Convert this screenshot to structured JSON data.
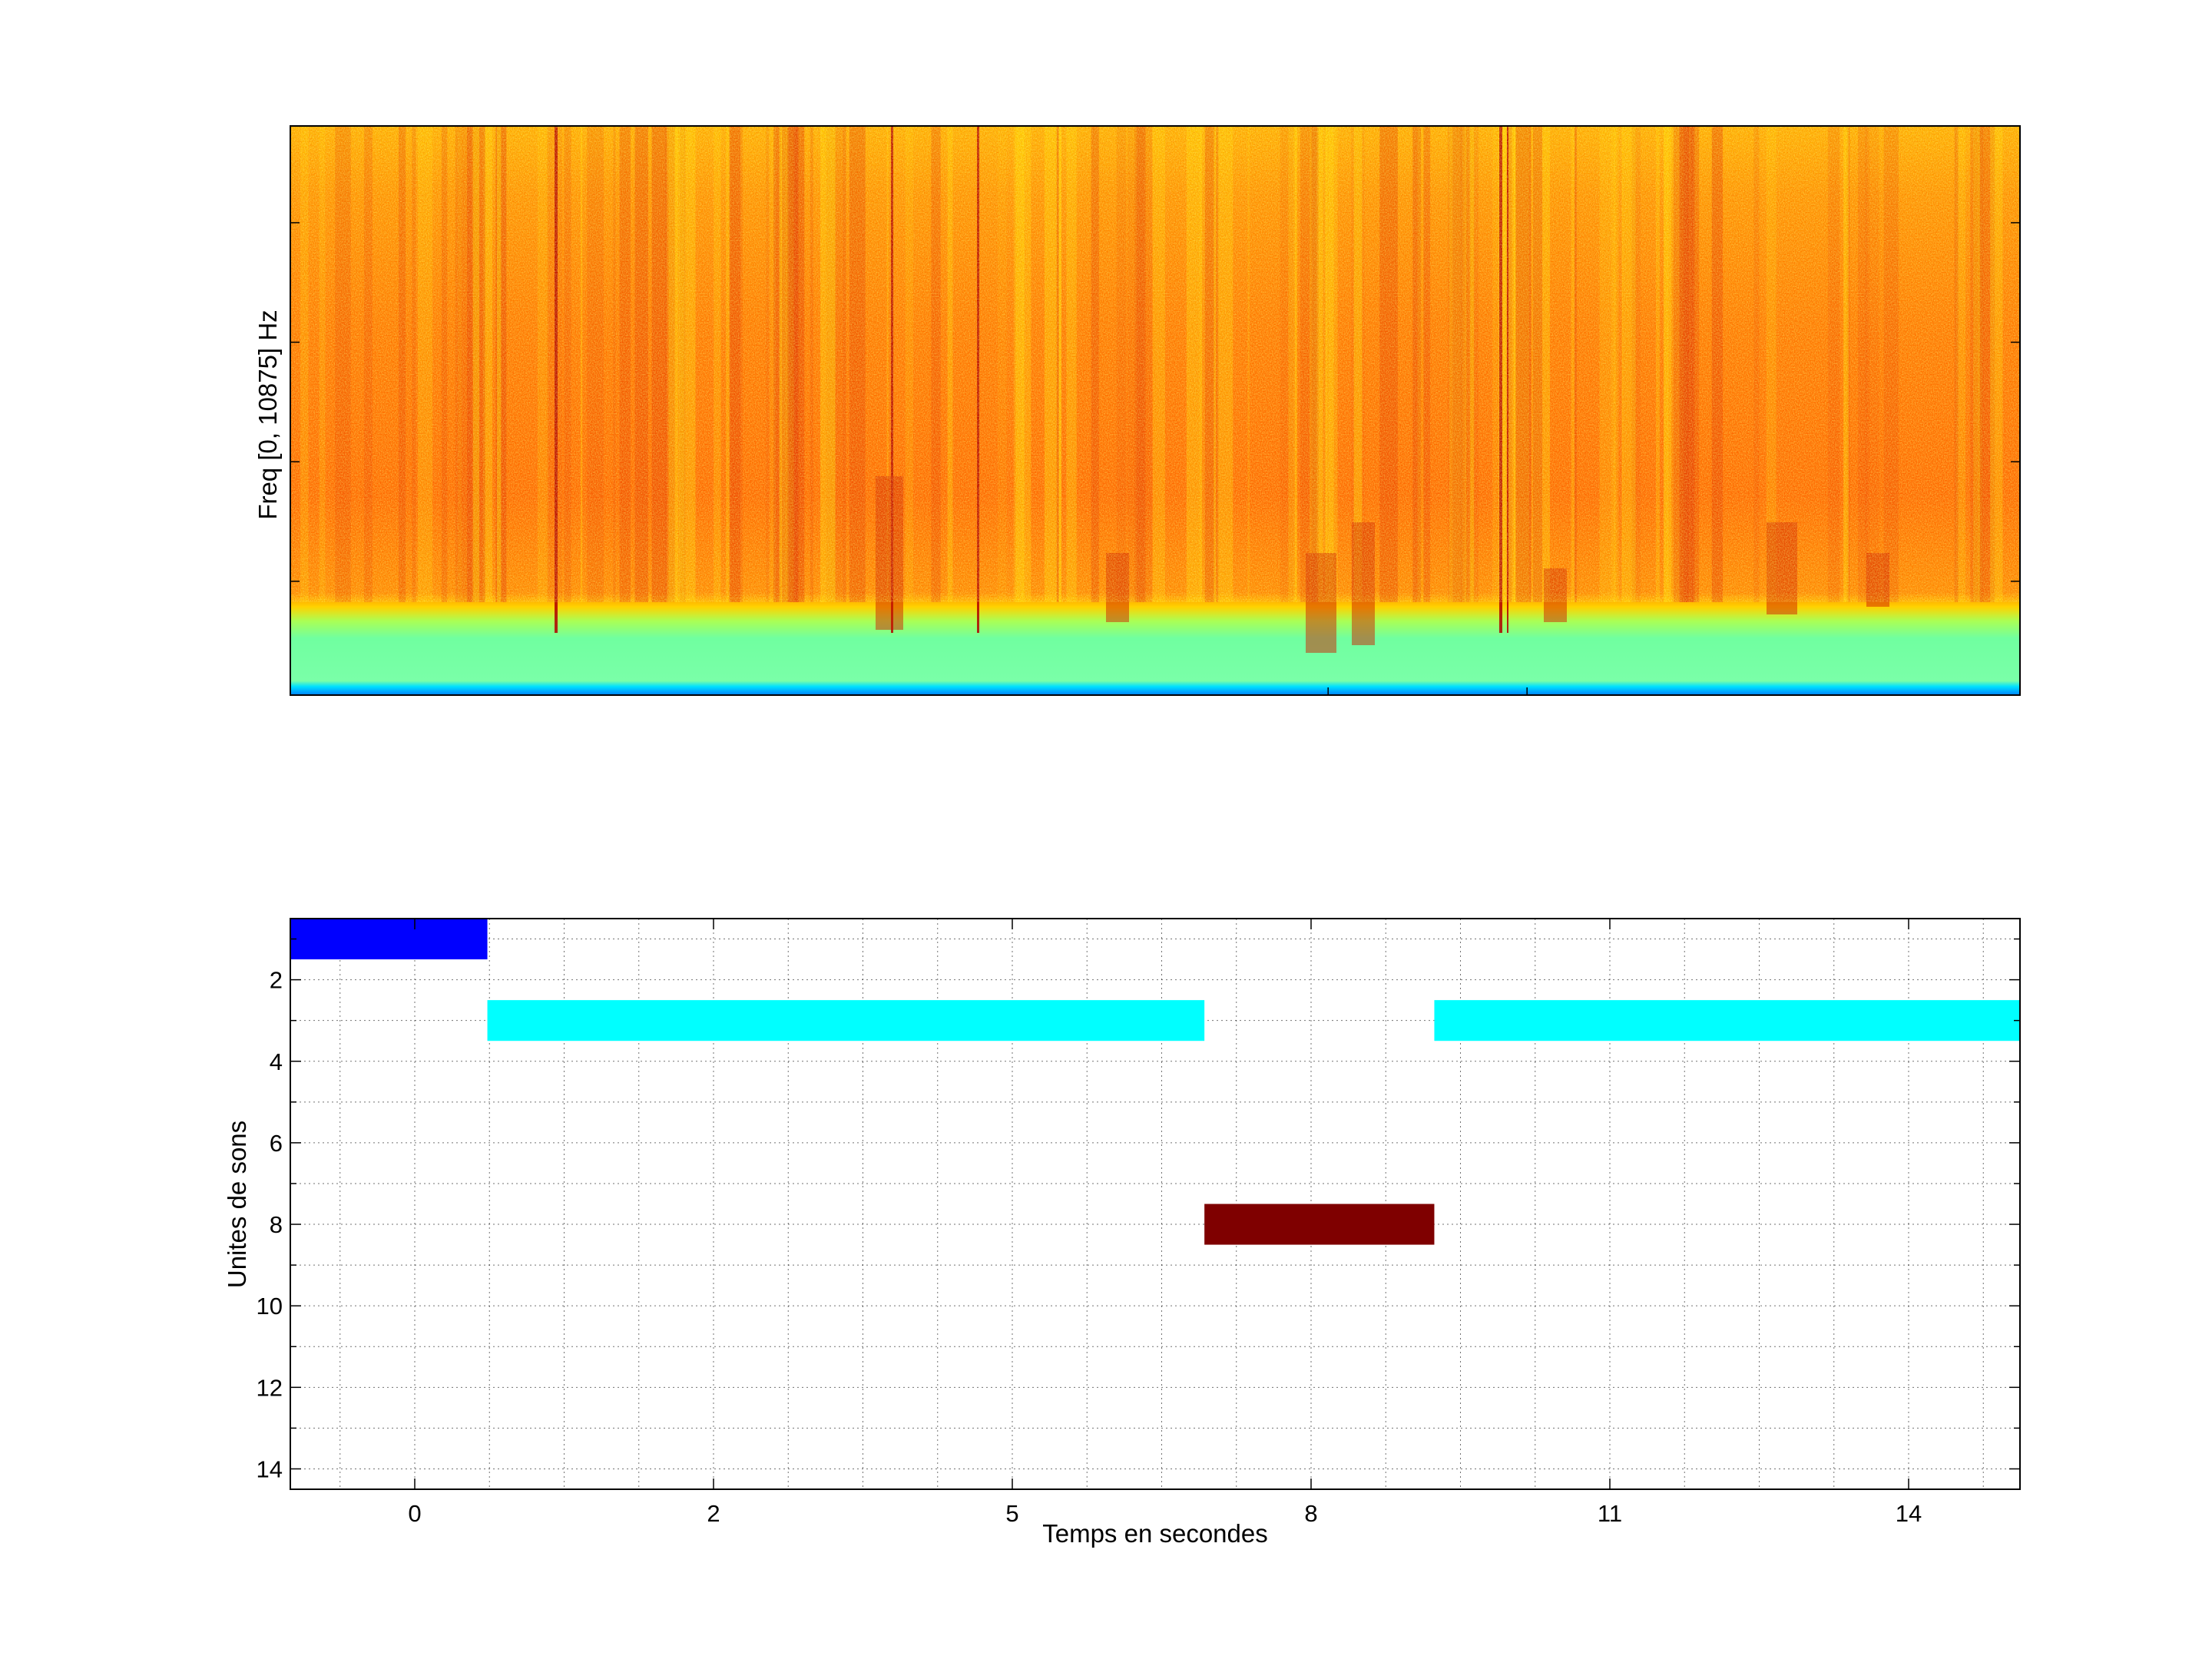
{
  "chart_data": [
    {
      "type": "heatmap",
      "ylabel": "Freq [0, 10875] Hz",
      "xlabel": "",
      "colormap": "jet",
      "colors": [
        "#00007f",
        "#0000ff",
        "#00ffff",
        "#7fff7f",
        "#ffff00",
        "#ff7f00",
        "#ff0000",
        "#7f0000"
      ]
    },
    {
      "type": "bar",
      "orientation": "horizontal",
      "xlabel": "Temps en secondes",
      "ylabel": "Unites de sons",
      "xtick_labels": [
        "0",
        "2",
        "5",
        "8",
        "11",
        "14"
      ],
      "ytick_labels": [
        "2",
        "4",
        "6",
        "8",
        "10",
        "12",
        "14"
      ],
      "grid": true,
      "y_reversed": true,
      "series": [
        {
          "unit": 1,
          "start": -0.9,
          "end": 0.9,
          "color": "#0000ff"
        },
        {
          "unit": 3,
          "start": 0.9,
          "end": 7.45,
          "color": "#00ffff"
        },
        {
          "unit": 8,
          "start": 7.45,
          "end": 9.55,
          "color": "#7f0000"
        },
        {
          "unit": 3,
          "start": 9.55,
          "end": 14.9,
          "color": "#00ffff"
        }
      ]
    }
  ]
}
